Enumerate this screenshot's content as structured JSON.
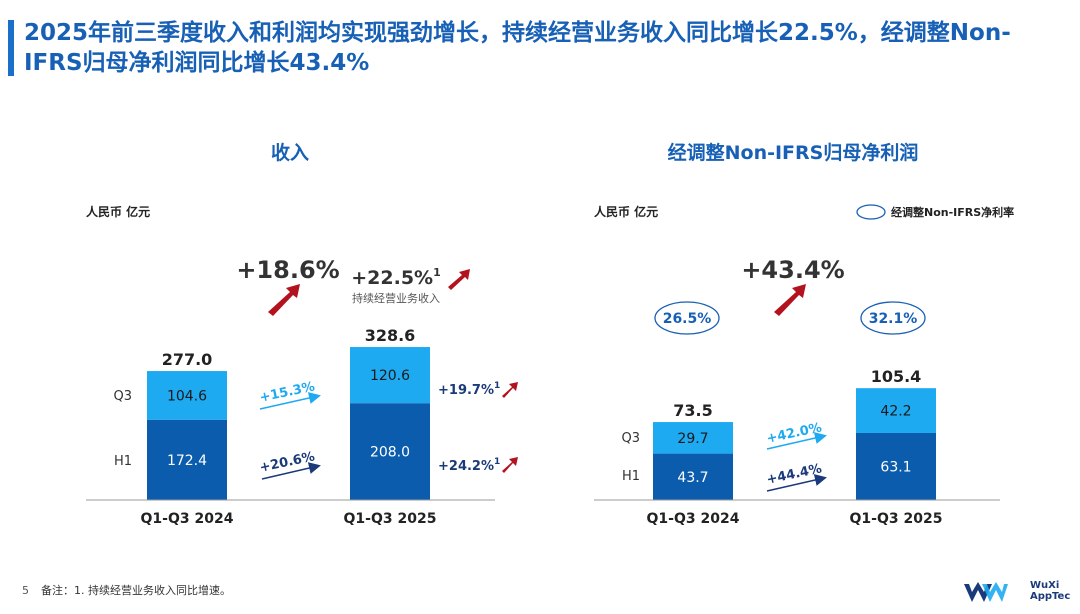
{
  "title": "2025年前三季度收入和利润均实现强劲增长，持续经营业务收入同比增长22.5%，经调整Non-IFRS归母净利润同比增长43.4%",
  "colors": {
    "dark_blue": "#0b5cad",
    "light_blue": "#1eaaf1",
    "arrow_red": "#b3121f",
    "title_blue": "#1760b5"
  },
  "chart_data": [
    {
      "type": "bar",
      "stacked": true,
      "title": "收入",
      "unit_label": "人民币 亿元",
      "categories": [
        "Q1-Q3 2024",
        "Q1-Q3 2025"
      ],
      "series": [
        {
          "name": "H1",
          "values": [
            172.4,
            208.0
          ]
        },
        {
          "name": "Q3",
          "values": [
            104.6,
            120.6
          ]
        }
      ],
      "totals": [
        "277.0",
        "328.6"
      ],
      "value_labels": {
        "H1": [
          "172.4",
          "208.0"
        ],
        "Q3": [
          "104.6",
          "120.6"
        ]
      },
      "growth_total": "+18.6%",
      "growth_continuing": "+22.5%",
      "growth_continuing_sup": "1",
      "growth_continuing_label": "持续经营业务收入",
      "growth_q3": "+15.3%",
      "growth_h1": "+20.6%",
      "growth_q3_continuing": "+19.7%",
      "growth_h1_continuing": "+24.2%",
      "growth_sup": "1"
    },
    {
      "type": "bar",
      "stacked": true,
      "title": "经调整Non-IFRS归母净利润",
      "unit_label": "人民币 亿元",
      "legend_label": "经调整Non-IFRS净利率",
      "categories": [
        "Q1-Q3 2024",
        "Q1-Q3 2025"
      ],
      "series": [
        {
          "name": "H1",
          "values": [
            43.7,
            63.1
          ]
        },
        {
          "name": "Q3",
          "values": [
            29.7,
            42.2
          ]
        }
      ],
      "totals": [
        "73.5",
        "105.4"
      ],
      "value_labels": {
        "H1": [
          "43.7",
          "63.1"
        ],
        "Q3": [
          "29.7",
          "42.2"
        ]
      },
      "margins": [
        "26.5%",
        "32.1%"
      ],
      "growth_total": "+43.4%",
      "growth_q3": "+42.0%",
      "growth_h1": "+44.4%"
    }
  ],
  "footnote": {
    "page_number": "5",
    "text": "备注：1. 持续经营业务收入同比增速。"
  },
  "logo": {
    "line1": "WuXi",
    "line2": "AppTec"
  }
}
